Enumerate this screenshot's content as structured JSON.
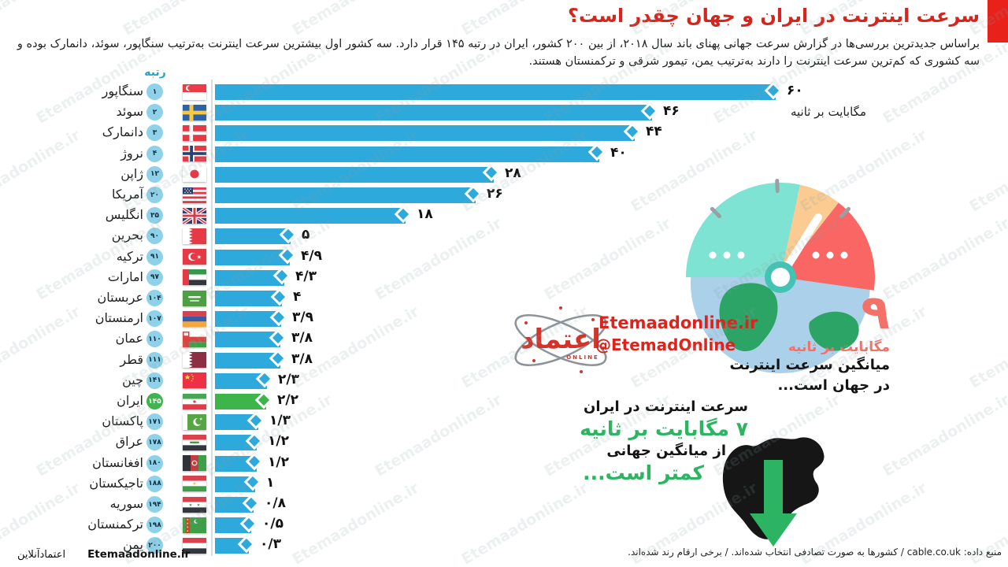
{
  "watermark_text": "Etemaadonline.ir",
  "header": {
    "title": "سرعت اینترنت در ایران و جهان چقدر است؟",
    "subtitle": "براساس جدیدترین بررسی‌ها در گزارش سرعت جهانی پهنای باند سال ۲۰۱۸، از بین ۲۰۰ کشور، ایران در رتبه ۱۴۵ قرار دارد. سه کشور اول بیشترین سرعت اینترنت به‌ترتیب سنگاپور، سوئد، دانمارک بوده و سه کشوری که کم‌ترین سرعت اینترنت را دارند به‌ترتیب یمن، تیمور شرقی و ترکمنستان هستند."
  },
  "colors": {
    "accent_red": "#e8211a",
    "title_red": "#d8251c",
    "bar_blue": "#2ea9dc",
    "iran_green": "#3db54a",
    "rank_circle_blue": "#8ed1e9",
    "rank_text_dark": "#10303e",
    "stat_red": "#f4716a",
    "stat_green": "#2db463",
    "rank_header_teal": "#29a5c4"
  },
  "chart_data": {
    "type": "bar",
    "orientation": "horizontal",
    "rank_header": "رتبه",
    "unit_label": "مگابایت بر ثانیه",
    "xlim": [
      0,
      60
    ],
    "grid": false,
    "rows": [
      {
        "country": "سنگاپور",
        "rank": 1,
        "rank_fa": "۱",
        "value": 60,
        "value_fa": "۶۰",
        "flag": "singapore",
        "highlight": false
      },
      {
        "country": "سوئد",
        "rank": 2,
        "rank_fa": "۲",
        "value": 46,
        "value_fa": "۴۶",
        "flag": "sweden",
        "highlight": false
      },
      {
        "country": "دانمارک",
        "rank": 3,
        "rank_fa": "۳",
        "value": 44,
        "value_fa": "۴۴",
        "flag": "denmark",
        "highlight": false
      },
      {
        "country": "نروژ",
        "rank": 4,
        "rank_fa": "۴",
        "value": 40,
        "value_fa": "۴۰",
        "flag": "norway",
        "highlight": false
      },
      {
        "country": "ژاپن",
        "rank": 12,
        "rank_fa": "۱۲",
        "value": 28,
        "value_fa": "۲۸",
        "flag": "japan",
        "highlight": false
      },
      {
        "country": "آمریکا",
        "rank": 20,
        "rank_fa": "۲۰",
        "value": 26,
        "value_fa": "۲۶",
        "flag": "usa",
        "highlight": false
      },
      {
        "country": "انگلیس",
        "rank": 35,
        "rank_fa": "۳۵",
        "value": 18,
        "value_fa": "۱۸",
        "flag": "uk",
        "highlight": false
      },
      {
        "country": "بحرین",
        "rank": 90,
        "rank_fa": "۹۰",
        "value": 5,
        "value_fa": "۵",
        "flag": "bahrain",
        "highlight": false
      },
      {
        "country": "ترکیه",
        "rank": 91,
        "rank_fa": "۹۱",
        "value": 4.9,
        "value_fa": "۴/۹",
        "flag": "turkey",
        "highlight": false
      },
      {
        "country": "امارات",
        "rank": 97,
        "rank_fa": "۹۷",
        "value": 4.3,
        "value_fa": "۴/۳",
        "flag": "uae",
        "highlight": false
      },
      {
        "country": "عربستان",
        "rank": 104,
        "rank_fa": "۱۰۴",
        "value": 4,
        "value_fa": "۴",
        "flag": "saudi",
        "highlight": false
      },
      {
        "country": "ارمنستان",
        "rank": 107,
        "rank_fa": "۱۰۷",
        "value": 3.9,
        "value_fa": "۳/۹",
        "flag": "armenia",
        "highlight": false
      },
      {
        "country": "عمان",
        "rank": 110,
        "rank_fa": "۱۱۰",
        "value": 3.8,
        "value_fa": "۳/۸",
        "flag": "oman",
        "highlight": false
      },
      {
        "country": "قطر",
        "rank": 111,
        "rank_fa": "۱۱۱",
        "value": 3.8,
        "value_fa": "۳/۸",
        "flag": "qatar",
        "highlight": false
      },
      {
        "country": "چین",
        "rank": 141,
        "rank_fa": "۱۴۱",
        "value": 2.3,
        "value_fa": "۲/۳",
        "flag": "china",
        "highlight": false
      },
      {
        "country": "ایران",
        "rank": 145,
        "rank_fa": "۱۴۵",
        "value": 2.2,
        "value_fa": "۲/۲",
        "flag": "iran",
        "highlight": true
      },
      {
        "country": "پاکستان",
        "rank": 171,
        "rank_fa": "۱۷۱",
        "value": 1.3,
        "value_fa": "۱/۳",
        "flag": "pakistan",
        "highlight": false
      },
      {
        "country": "عراق",
        "rank": 178,
        "rank_fa": "۱۷۸",
        "value": 1.2,
        "value_fa": "۱/۲",
        "flag": "iraq",
        "highlight": false
      },
      {
        "country": "افغانستان",
        "rank": 180,
        "rank_fa": "۱۸۰",
        "value": 1.2,
        "value_fa": "۱/۲",
        "flag": "afghanistan",
        "highlight": false
      },
      {
        "country": "تاجیکستان",
        "rank": 188,
        "rank_fa": "۱۸۸",
        "value": 1,
        "value_fa": "۱",
        "flag": "tajikistan",
        "highlight": false
      },
      {
        "country": "سوریه",
        "rank": 194,
        "rank_fa": "۱۹۴",
        "value": 0.8,
        "value_fa": "۰/۸",
        "flag": "syria",
        "highlight": false
      },
      {
        "country": "ترکمنستان",
        "rank": 198,
        "rank_fa": "۱۹۸",
        "value": 0.5,
        "value_fa": "۰/۵",
        "flag": "turkmenistan",
        "highlight": false
      },
      {
        "country": "یمن",
        "rank": 200,
        "rank_fa": "۲۰۰",
        "value": 0.3,
        "value_fa": "۰/۳",
        "flag": "yemen",
        "highlight": false
      }
    ]
  },
  "logo": {
    "site": "Etemaadonline.ir",
    "handle": "@EtemadOnline",
    "mark_fa": "اعتماد",
    "mark_sub": "ONLINE"
  },
  "world_stat": {
    "number_fa": "۹",
    "unit": "مگابایت بر ثانیه",
    "line1": "میانگین سرعت اینترنت",
    "line2": "در جهان است..."
  },
  "iran_stat": {
    "line1": "سرعت اینترنت در ایران",
    "highlight1": "۷ مگابایت بر ثانیه",
    "line2": "از میانگین جهانی",
    "highlight2": "کمتر است..."
  },
  "footer": {
    "source": "منبع داده: cable.co.uk / کشورها به صورت تصادفی انتخاب شده‌اند. / برخی ارقام رند شده‌اند.",
    "brand_en": "Etemaadonline.ir",
    "brand_fa": "اعتمادآنلاین"
  }
}
